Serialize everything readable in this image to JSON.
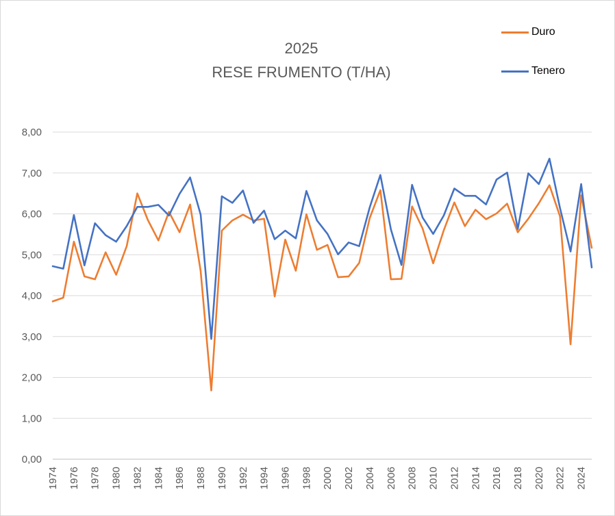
{
  "chart_data": {
    "type": "line",
    "title_line1": "2025",
    "title_line2": "RESE FRUMENTO (T/HA)",
    "xlabel": "",
    "ylabel": "",
    "ylim": [
      0,
      8
    ],
    "y_ticks": [
      "0,00",
      "1,00",
      "2,00",
      "3,00",
      "4,00",
      "5,00",
      "6,00",
      "7,00",
      "8,00"
    ],
    "x": [
      1974,
      1975,
      1976,
      1977,
      1978,
      1979,
      1980,
      1981,
      1982,
      1983,
      1984,
      1985,
      1986,
      1987,
      1988,
      1989,
      1990,
      1991,
      1992,
      1993,
      1994,
      1995,
      1996,
      1997,
      1998,
      1999,
      2000,
      2001,
      2002,
      2003,
      2004,
      2005,
      2006,
      2007,
      2008,
      2009,
      2010,
      2011,
      2012,
      2013,
      2014,
      2015,
      2016,
      2017,
      2018,
      2019,
      2020,
      2021,
      2022,
      2023,
      2024,
      2025
    ],
    "x_tick_labels": [
      "1974",
      "1976",
      "1978",
      "1980",
      "1982",
      "1984",
      "1986",
      "1988",
      "1990",
      "1992",
      "1994",
      "1996",
      "1998",
      "2000",
      "2002",
      "2004",
      "2006",
      "2008",
      "2010",
      "2012",
      "2014",
      "2016",
      "2018",
      "2020",
      "2022",
      "2024"
    ],
    "grid": true,
    "legend_position": "top-right",
    "series": [
      {
        "name": "Duro",
        "color": "#ED7D31",
        "values": [
          3.86,
          3.95,
          5.32,
          4.47,
          4.4,
          5.06,
          4.51,
          5.21,
          6.5,
          5.85,
          5.35,
          6.05,
          5.55,
          6.23,
          4.6,
          1.68,
          5.59,
          5.84,
          5.98,
          5.84,
          5.88,
          3.98,
          5.37,
          4.61,
          5.99,
          5.12,
          5.24,
          4.45,
          4.47,
          4.8,
          5.9,
          6.58,
          4.4,
          4.41,
          6.18,
          5.64,
          4.79,
          5.6,
          6.28,
          5.7,
          6.1,
          5.87,
          6.01,
          6.25,
          5.55,
          5.88,
          6.26,
          6.7,
          5.94,
          2.81,
          6.45,
          5.17
        ]
      },
      {
        "name": "Tenero",
        "color": "#4472C4",
        "values": [
          4.72,
          4.66,
          5.97,
          4.74,
          5.77,
          5.48,
          5.32,
          5.7,
          6.17,
          6.17,
          6.22,
          5.96,
          6.49,
          6.89,
          5.98,
          2.94,
          6.43,
          6.27,
          6.57,
          5.78,
          6.08,
          5.38,
          5.59,
          5.4,
          6.56,
          5.84,
          5.51,
          5.01,
          5.3,
          5.21,
          6.16,
          6.95,
          5.62,
          4.75,
          6.71,
          5.91,
          5.51,
          5.96,
          6.62,
          6.44,
          6.44,
          6.23,
          6.84,
          7.01,
          5.63,
          6.99,
          6.73,
          7.35,
          6.14,
          5.08,
          6.73,
          4.69
        ]
      }
    ]
  }
}
